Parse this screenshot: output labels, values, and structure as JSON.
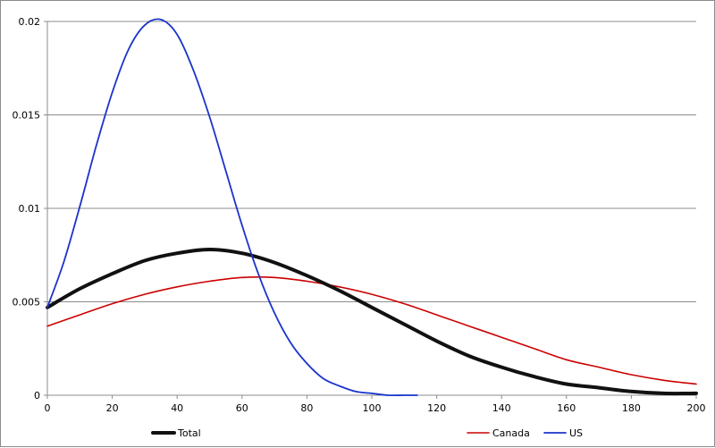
{
  "chart_data": {
    "type": "line",
    "title": "",
    "xlabel": "",
    "ylabel": "",
    "xlim": [
      0,
      200
    ],
    "ylim": [
      0,
      0.02
    ],
    "x_ticks": [
      0,
      20,
      40,
      60,
      80,
      100,
      120,
      140,
      160,
      180,
      200
    ],
    "x_tick_labels": [
      "0",
      "20",
      "40",
      "60",
      "80",
      "100",
      "120",
      "140",
      "160",
      "180",
      "200"
    ],
    "y_ticks": [
      0,
      0.005,
      0.01,
      0.015,
      0.02
    ],
    "y_tick_labels": [
      "0",
      "0.005",
      "0.01",
      "0.015",
      "0.02"
    ],
    "grid": "horizontal",
    "legend_position": "bottom",
    "series": [
      {
        "name": "Total",
        "color": "#111111",
        "x": [
          0,
          10,
          20,
          30,
          40,
          50,
          60,
          70,
          80,
          90,
          100,
          110,
          120,
          130,
          140,
          150,
          160,
          170,
          180,
          190,
          200
        ],
        "y": [
          0.0047,
          0.0057,
          0.0065,
          0.0072,
          0.0076,
          0.0078,
          0.0076,
          0.0071,
          0.0064,
          0.0056,
          0.0047,
          0.0038,
          0.0029,
          0.0021,
          0.0015,
          0.001,
          0.0006,
          0.0004,
          0.0002,
          0.0001,
          0.0001
        ]
      },
      {
        "name": "Canada",
        "color": "#cc0000",
        "x": [
          0,
          10,
          20,
          30,
          40,
          50,
          60,
          70,
          80,
          90,
          100,
          110,
          120,
          130,
          140,
          150,
          160,
          170,
          180,
          190,
          200
        ],
        "y": [
          0.0037,
          0.0043,
          0.0049,
          0.0054,
          0.0058,
          0.0061,
          0.0063,
          0.0063,
          0.0061,
          0.0058,
          0.0054,
          0.0049,
          0.0043,
          0.0037,
          0.0031,
          0.0025,
          0.0019,
          0.0015,
          0.0011,
          0.0008,
          0.0006
        ]
      },
      {
        "name": "US",
        "color": "#1a33cc",
        "x": [
          0,
          5,
          10,
          15,
          20,
          25,
          30,
          35,
          40,
          45,
          50,
          55,
          60,
          65,
          70,
          75,
          80,
          85,
          90,
          95,
          100,
          105,
          110,
          114
        ],
        "y": [
          0.0047,
          0.0071,
          0.0101,
          0.0133,
          0.0162,
          0.0185,
          0.0198,
          0.0201,
          0.0193,
          0.0174,
          0.0149,
          0.012,
          0.0091,
          0.0065,
          0.0044,
          0.0028,
          0.0017,
          0.0009,
          0.0005,
          0.0002,
          0.0001,
          0.0,
          0.0,
          0.0
        ]
      }
    ]
  }
}
